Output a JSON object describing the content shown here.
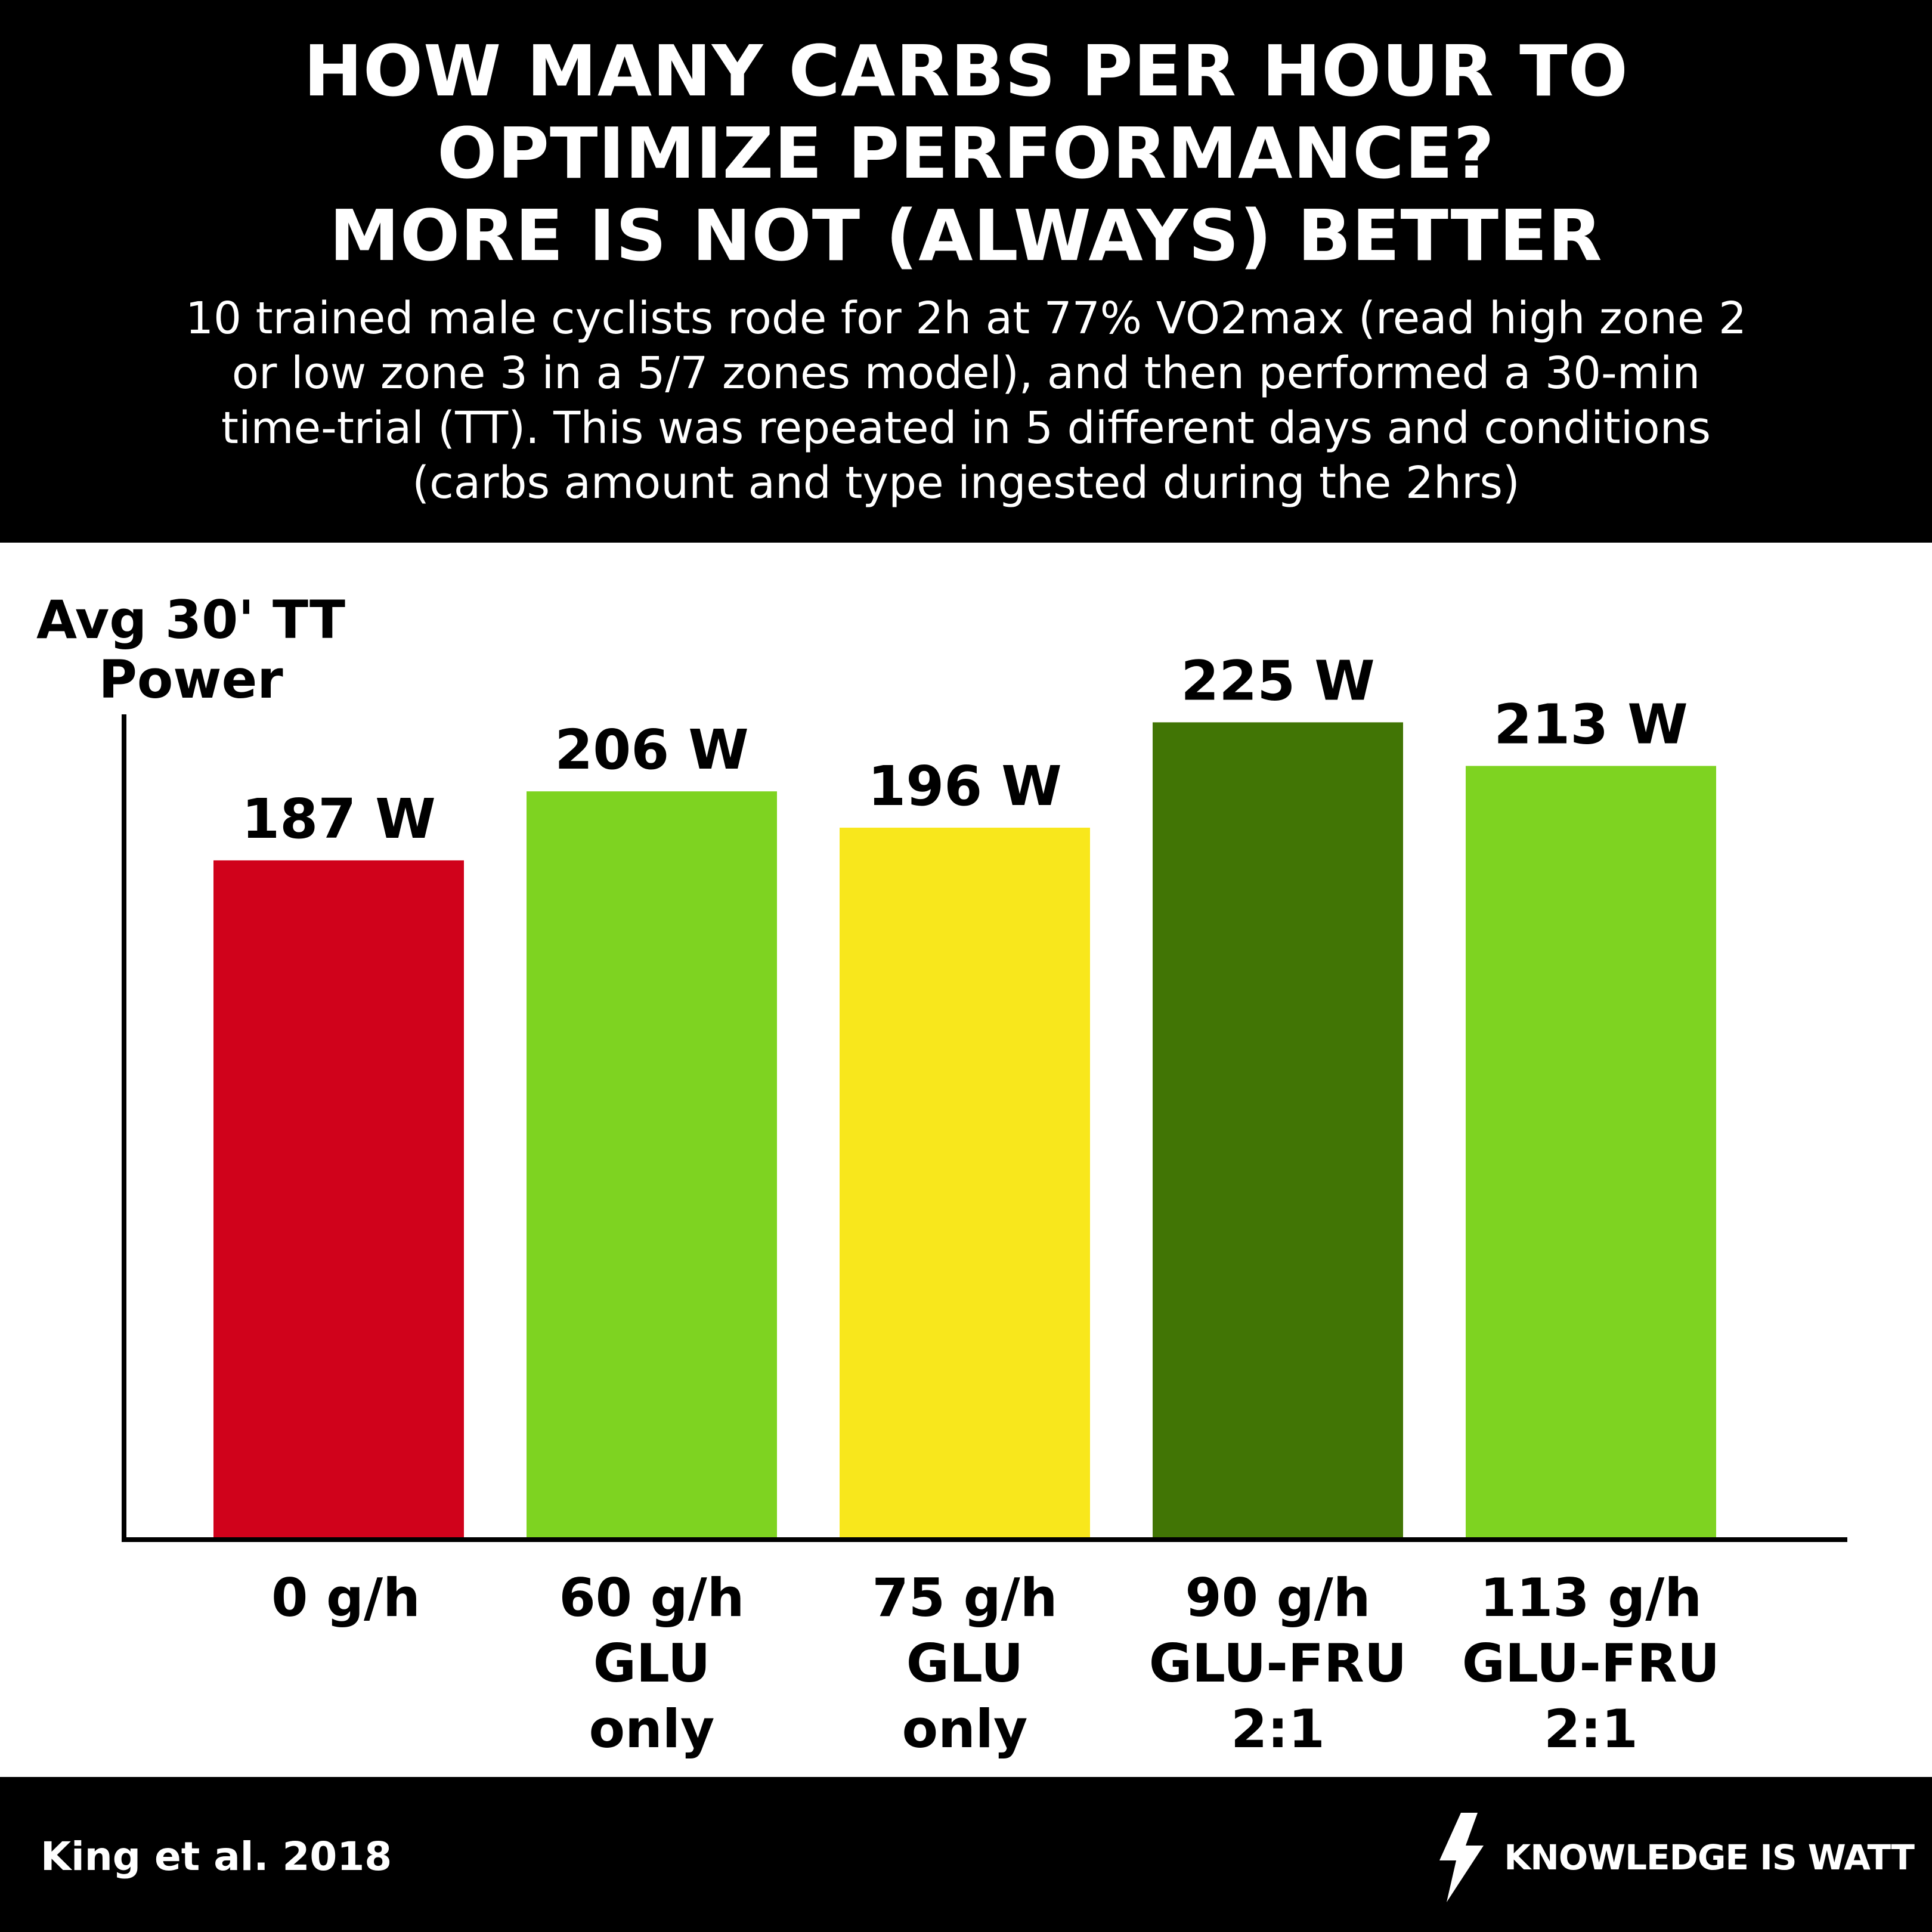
{
  "header": {
    "title_lines": [
      "HOW MANY CARBS PER HOUR TO",
      "OPTIMIZE PERFORMANCE?",
      "MORE IS NOT (ALWAYS) BETTER"
    ],
    "subtitle_lines": [
      "10 trained male cyclists rode for 2h at 77% VO2max (read high zone 2",
      "or low zone 3 in a 5/7 zones model), and then performed a 30-min",
      "time-trial (TT). This was repeated in 5 different days and conditions",
      "(carbs amount and type ingested during the 2hrs)"
    ]
  },
  "chart_data": {
    "type": "bar",
    "ylabel_lines": [
      "Avg 30' TT",
      "Power"
    ],
    "categories": [
      [
        "0 g/h"
      ],
      [
        "60 g/h",
        "GLU",
        "only"
      ],
      [
        "75 g/h",
        "GLU",
        "only"
      ],
      [
        "90 g/h",
        "GLU-FRU",
        "2:1"
      ],
      [
        "113 g/h",
        "GLU-FRU",
        "2:1"
      ]
    ],
    "values": [
      187,
      206,
      196,
      225,
      213
    ],
    "value_labels": [
      "187 W",
      "206 W",
      "196 W",
      "225 W",
      "213 W"
    ],
    "unit": "W",
    "colors": [
      "#d0021b",
      "#7ed321",
      "#f8e71c",
      "#417505",
      "#7ed321"
    ],
    "ylim": [
      0,
      240
    ],
    "grid": false,
    "legend": "none"
  },
  "footer": {
    "source": "King et al. 2018",
    "brand": "KNOWLEDGE IS WATT",
    "brand_icon": "lightning-bolt-icon"
  }
}
